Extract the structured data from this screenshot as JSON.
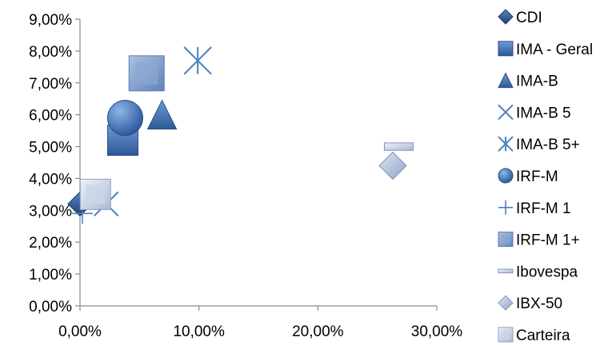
{
  "chart_data": {
    "type": "scatter",
    "title": "",
    "xlabel": "",
    "ylabel": "",
    "xlim": [
      0,
      30
    ],
    "ylim": [
      0,
      9
    ],
    "x_ticks": [
      0,
      10,
      20,
      30
    ],
    "y_ticks": [
      0,
      1,
      2,
      3,
      4,
      5,
      6,
      7,
      8,
      9
    ],
    "x_tick_labels": [
      "0,00%",
      "10,00%",
      "20,00%",
      "30,00%"
    ],
    "y_tick_labels": [
      "0,00%",
      "1,00%",
      "2,00%",
      "3,00%",
      "4,00%",
      "5,00%",
      "6,00%",
      "7,00%",
      "8,00%",
      "9,00%"
    ],
    "grid": false,
    "legend_position": "right",
    "series": [
      {
        "name": "CDI",
        "marker": "diamond",
        "color": "#2e4a7c",
        "x": [
          0.0
        ],
        "y": [
          3.2
        ]
      },
      {
        "name": "IMA - Geral",
        "marker": "square",
        "color": "#3566a8",
        "x": [
          3.6
        ],
        "y": [
          5.2
        ]
      },
      {
        "name": "IMA-B",
        "marker": "triangle",
        "color": "#3566a8",
        "x": [
          6.9
        ],
        "y": [
          6.0
        ]
      },
      {
        "name": "IMA-B 5",
        "marker": "x",
        "color": "#4f81bd",
        "x": [
          2.2
        ],
        "y": [
          3.2
        ]
      },
      {
        "name": "IMA-B 5+",
        "marker": "star",
        "color": "#4f81bd",
        "x": [
          9.9
        ],
        "y": [
          7.7
        ]
      },
      {
        "name": "IRF-M",
        "marker": "circle",
        "color": "#3a6fb3",
        "x": [
          3.8
        ],
        "y": [
          5.9
        ]
      },
      {
        "name": "IRF-M 1",
        "marker": "plus",
        "color": "#4f81bd",
        "x": [
          0.2
        ],
        "y": [
          2.9
        ]
      },
      {
        "name": "IRF-M 1+",
        "marker": "square-grad",
        "color": "#7f9ccc",
        "x": [
          5.6
        ],
        "y": [
          7.3
        ]
      },
      {
        "name": "Ibovespa",
        "marker": "dash",
        "color": "#b9c9e0",
        "x": [
          26.8
        ],
        "y": [
          5.0
        ]
      },
      {
        "name": "IBX-50",
        "marker": "diamond-light",
        "color": "#a5b8d6",
        "x": [
          26.3
        ],
        "y": [
          4.4
        ]
      },
      {
        "name": "Carteira",
        "marker": "square-light",
        "color": "#c4d0e4",
        "x": [
          1.3
        ],
        "y": [
          3.5
        ]
      }
    ]
  }
}
